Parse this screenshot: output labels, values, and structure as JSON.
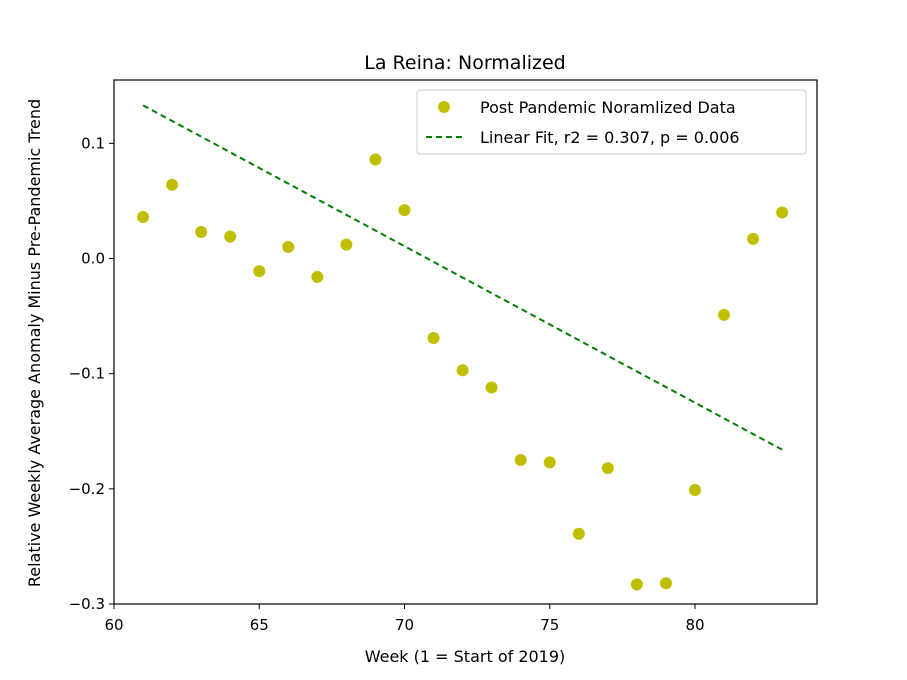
{
  "chart_data": {
    "type": "scatter",
    "title": "La Reina: Normalized",
    "xlabel": "Week (1 = Start of 2019)",
    "ylabel": "Relative Weekly Average Anomaly Minus Pre-Pandemic Trend",
    "xlim": [
      60,
      84.2
    ],
    "ylim": [
      -0.3,
      0.155
    ],
    "xticks": [
      60,
      65,
      70,
      75,
      80
    ],
    "xtick_labels": [
      "60",
      "65",
      "70",
      "75",
      "80"
    ],
    "yticks": [
      0.1,
      0.0,
      -0.1,
      -0.2,
      -0.3
    ],
    "ytick_labels": [
      "0.1",
      "0.0",
      "−0.1",
      "−0.2",
      "−0.3"
    ],
    "grid": false,
    "legend_position": "top-right",
    "series": [
      {
        "name": "Post Pandemic Noramlized Data",
        "kind": "scatter",
        "color": "#bfbf00",
        "x": [
          61,
          62,
          63,
          64,
          65,
          66,
          67,
          68,
          69,
          70,
          71,
          72,
          73,
          74,
          75,
          76,
          77,
          78,
          79,
          80,
          81,
          82,
          83
        ],
        "y": [
          0.036,
          0.064,
          0.023,
          0.019,
          -0.011,
          0.01,
          -0.016,
          0.012,
          0.086,
          0.042,
          -0.069,
          -0.097,
          -0.112,
          -0.175,
          -0.177,
          -0.239,
          -0.182,
          -0.283,
          -0.282,
          -0.201,
          -0.049,
          0.017,
          0.04
        ]
      },
      {
        "name": "Linear Fit, r2 = 0.307, p = 0.006",
        "kind": "line",
        "style": "dashed",
        "color": "#008000",
        "x": [
          61,
          83
        ],
        "y": [
          0.133,
          -0.166
        ]
      }
    ]
  }
}
